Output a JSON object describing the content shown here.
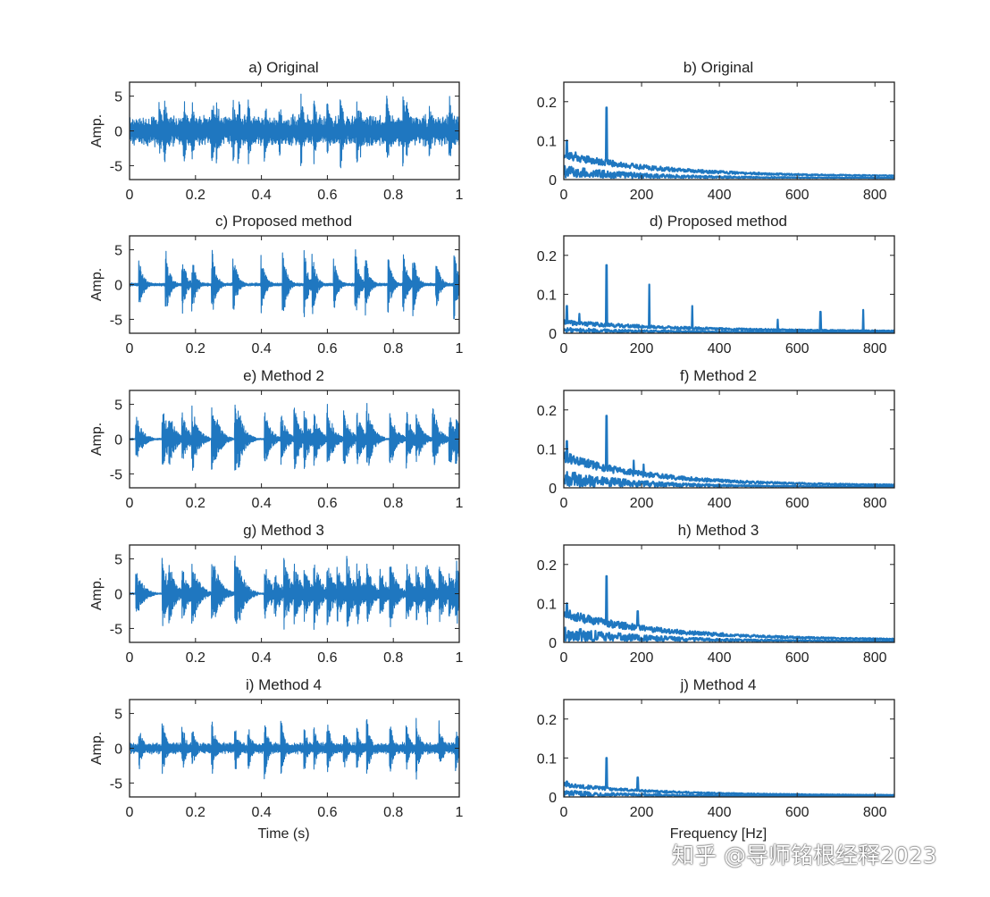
{
  "colors": {
    "signal": "#1f77c0",
    "axis": "#222222",
    "background": "#ffffff"
  },
  "watermark": "知乎 @导师铭根经释2023",
  "chart_data": [
    {
      "id": "a",
      "type": "line",
      "title": "a) Original",
      "ylabel": "Amp.",
      "xlabel": "",
      "xlim": [
        0,
        1
      ],
      "ylim": [
        -7,
        7
      ],
      "xticks": [
        0,
        0.2,
        0.4,
        0.6,
        0.8,
        1
      ],
      "xtick_labels": [
        "0",
        "0.2",
        "0.4",
        "0.6",
        "0.8",
        "1"
      ],
      "yticks": [
        5,
        0,
        -5
      ],
      "ytick_labels": [
        "5",
        "0",
        "-5"
      ],
      "profile": {
        "kind": "time",
        "noise_amp": 2.4,
        "bursts": [
          0.09,
          0.105,
          0.165,
          0.19,
          0.25,
          0.265,
          0.315,
          0.33,
          0.36,
          0.41,
          0.455,
          0.52,
          0.56,
          0.6,
          0.64,
          0.69,
          0.7,
          0.78,
          0.83,
          0.84,
          0.91,
          0.97
        ],
        "burst_amp": 5.5,
        "seed": 11
      }
    },
    {
      "id": "b",
      "type": "line",
      "title": "b) Original",
      "ylabel": "",
      "xlabel": "",
      "xlim": [
        0,
        850
      ],
      "ylim": [
        0,
        0.25
      ],
      "xticks": [
        0,
        200,
        400,
        600,
        800
      ],
      "xtick_labels": [
        "0",
        "200",
        "400",
        "600",
        "800"
      ],
      "yticks": [
        0.2,
        0.1,
        0
      ],
      "ytick_labels": [
        "0.2",
        "0.1",
        "0"
      ],
      "profile": {
        "kind": "spectrum",
        "base": 0.045,
        "decay": 220,
        "floor": 0.008,
        "noise": 0.022,
        "peaks": [
          [
            110,
            0.185
          ],
          [
            8,
            0.1
          ],
          [
            30,
            0.07
          ]
        ],
        "seed": 21
      }
    },
    {
      "id": "c",
      "type": "line",
      "title": "c) Proposed method",
      "ylabel": "Amp.",
      "xlabel": "",
      "xlim": [
        0,
        1
      ],
      "ylim": [
        -7,
        7
      ],
      "xticks": [
        0,
        0.2,
        0.4,
        0.6,
        0.8,
        1
      ],
      "xtick_labels": [
        "0",
        "0.2",
        "0.4",
        "0.6",
        "0.8",
        "1"
      ],
      "yticks": [
        5,
        0,
        -5
      ],
      "ytick_labels": [
        "5",
        "0",
        "-5"
      ],
      "profile": {
        "kind": "time",
        "noise_amp": 0.25,
        "bursts": [
          0.03,
          0.11,
          0.16,
          0.19,
          0.25,
          0.315,
          0.4,
          0.465,
          0.53,
          0.555,
          0.62,
          0.685,
          0.715,
          0.785,
          0.83,
          0.86,
          0.93,
          0.985
        ],
        "burst_amp": 5.2,
        "seed": 31
      }
    },
    {
      "id": "d",
      "type": "line",
      "title": "d)  Proposed method",
      "ylabel": "",
      "xlabel": "",
      "xlim": [
        0,
        850
      ],
      "ylim": [
        0,
        0.25
      ],
      "xticks": [
        0,
        200,
        400,
        600,
        800
      ],
      "xtick_labels": [
        "0",
        "200",
        "400",
        "600",
        "800"
      ],
      "yticks": [
        0.2,
        0.1,
        0
      ],
      "ytick_labels": [
        "0.2",
        "0.1",
        "0"
      ],
      "profile": {
        "kind": "spectrum",
        "base": 0.018,
        "decay": 300,
        "floor": 0.004,
        "noise": 0.012,
        "peaks": [
          [
            110,
            0.175
          ],
          [
            220,
            0.125
          ],
          [
            330,
            0.07
          ],
          [
            550,
            0.035
          ],
          [
            660,
            0.055
          ],
          [
            770,
            0.06
          ],
          [
            8,
            0.07
          ],
          [
            40,
            0.05
          ]
        ],
        "seed": 41
      }
    },
    {
      "id": "e",
      "type": "line",
      "title": "e) Method 2",
      "ylabel": "Amp.",
      "xlabel": "",
      "xlim": [
        0,
        1
      ],
      "ylim": [
        -7,
        7
      ],
      "xticks": [
        0,
        0.2,
        0.4,
        0.6,
        0.8,
        1
      ],
      "xtick_labels": [
        "0",
        "0.2",
        "0.4",
        "0.6",
        "0.8",
        "1"
      ],
      "yticks": [
        5,
        0,
        -5
      ],
      "ytick_labels": [
        "5",
        "0",
        "-5"
      ],
      "profile": {
        "kind": "time",
        "noise_amp": 0.15,
        "bursts": [
          0.02,
          0.1,
          0.12,
          0.16,
          0.19,
          0.25,
          0.26,
          0.32,
          0.33,
          0.41,
          0.46,
          0.5,
          0.53,
          0.56,
          0.6,
          0.65,
          0.69,
          0.72,
          0.79,
          0.84,
          0.87,
          0.92,
          0.97,
          0.99
        ],
        "burst_amp": 5.0,
        "burst_width": 0.018,
        "seed": 51
      }
    },
    {
      "id": "f",
      "type": "line",
      "title": "f) Method 2",
      "ylabel": "",
      "xlabel": "",
      "xlim": [
        0,
        850
      ],
      "ylim": [
        0,
        0.25
      ],
      "xticks": [
        0,
        200,
        400,
        600,
        800
      ],
      "xtick_labels": [
        "0",
        "200",
        "400",
        "600",
        "800"
      ],
      "yticks": [
        0.2,
        0.1,
        0
      ],
      "ytick_labels": [
        "0.2",
        "0.1",
        "0"
      ],
      "profile": {
        "kind": "spectrum",
        "base": 0.06,
        "decay": 200,
        "floor": 0.006,
        "noise": 0.028,
        "peaks": [
          [
            110,
            0.185
          ],
          [
            8,
            0.12
          ],
          [
            180,
            0.07
          ],
          [
            205,
            0.06
          ]
        ],
        "seed": 61
      }
    },
    {
      "id": "g",
      "type": "line",
      "title": "g) Method 3",
      "ylabel": "Amp.",
      "xlabel": "",
      "xlim": [
        0,
        1
      ],
      "ylim": [
        -7,
        7
      ],
      "xticks": [
        0,
        0.2,
        0.4,
        0.6,
        0.8,
        1
      ],
      "xtick_labels": [
        "0",
        "0.2",
        "0.4",
        "0.6",
        "0.8",
        "1"
      ],
      "yticks": [
        5,
        0,
        -5
      ],
      "ytick_labels": [
        "5",
        "0",
        "-5"
      ],
      "profile": {
        "kind": "time",
        "noise_amp": 0.15,
        "bursts": [
          0.02,
          0.1,
          0.12,
          0.16,
          0.19,
          0.25,
          0.26,
          0.32,
          0.33,
          0.41,
          0.44,
          0.47,
          0.5,
          0.53,
          0.56,
          0.6,
          0.63,
          0.66,
          0.69,
          0.72,
          0.76,
          0.79,
          0.84,
          0.87,
          0.9,
          0.94,
          0.97,
          0.99
        ],
        "burst_amp": 5.2,
        "burst_width": 0.02,
        "seed": 71
      }
    },
    {
      "id": "h",
      "type": "line",
      "title": "h) Method 3",
      "ylabel": "",
      "xlabel": "",
      "xlim": [
        0,
        850
      ],
      "ylim": [
        0,
        0.25
      ],
      "xticks": [
        0,
        200,
        400,
        600,
        800
      ],
      "xtick_labels": [
        "0",
        "200",
        "400",
        "600",
        "800"
      ],
      "yticks": [
        0.2,
        0.1,
        0
      ],
      "ytick_labels": [
        "0.2",
        "0.1",
        "0"
      ],
      "profile": {
        "kind": "spectrum",
        "base": 0.055,
        "decay": 230,
        "floor": 0.006,
        "noise": 0.026,
        "peaks": [
          [
            110,
            0.17
          ],
          [
            8,
            0.1
          ],
          [
            190,
            0.08
          ]
        ],
        "seed": 81
      }
    },
    {
      "id": "i",
      "type": "line",
      "title": "i) Method 4",
      "ylabel": "Amp.",
      "xlabel": "Time (s)",
      "xlim": [
        0,
        1
      ],
      "ylim": [
        -7,
        7
      ],
      "xticks": [
        0,
        0.2,
        0.4,
        0.6,
        0.8,
        1
      ],
      "xtick_labels": [
        "0",
        "0.2",
        "0.4",
        "0.6",
        "0.8",
        "1"
      ],
      "yticks": [
        5,
        0,
        -5
      ],
      "ytick_labels": [
        "5",
        "0",
        "-5"
      ],
      "profile": {
        "kind": "time",
        "noise_amp": 0.9,
        "bursts": [
          0.03,
          0.1,
          0.16,
          0.19,
          0.25,
          0.32,
          0.36,
          0.41,
          0.46,
          0.53,
          0.56,
          0.6,
          0.65,
          0.69,
          0.72,
          0.79,
          0.84,
          0.87,
          0.94,
          0.99
        ],
        "burst_amp": 4.2,
        "seed": 91
      }
    },
    {
      "id": "j",
      "type": "line",
      "title": "j) Method 4",
      "ylabel": "",
      "xlabel": "Frequency [Hz]",
      "xlim": [
        0,
        850
      ],
      "ylim": [
        0,
        0.25
      ],
      "xticks": [
        0,
        200,
        400,
        600,
        800
      ],
      "xtick_labels": [
        "0",
        "200",
        "400",
        "600",
        "800"
      ],
      "yticks": [
        0.2,
        0.1,
        0
      ],
      "ytick_labels": [
        "0.2",
        "0.1",
        "0"
      ],
      "profile": {
        "kind": "spectrum",
        "base": 0.022,
        "decay": 220,
        "floor": 0.004,
        "noise": 0.011,
        "peaks": [
          [
            110,
            0.1
          ],
          [
            190,
            0.05
          ],
          [
            8,
            0.04
          ]
        ],
        "seed": 101
      }
    }
  ]
}
